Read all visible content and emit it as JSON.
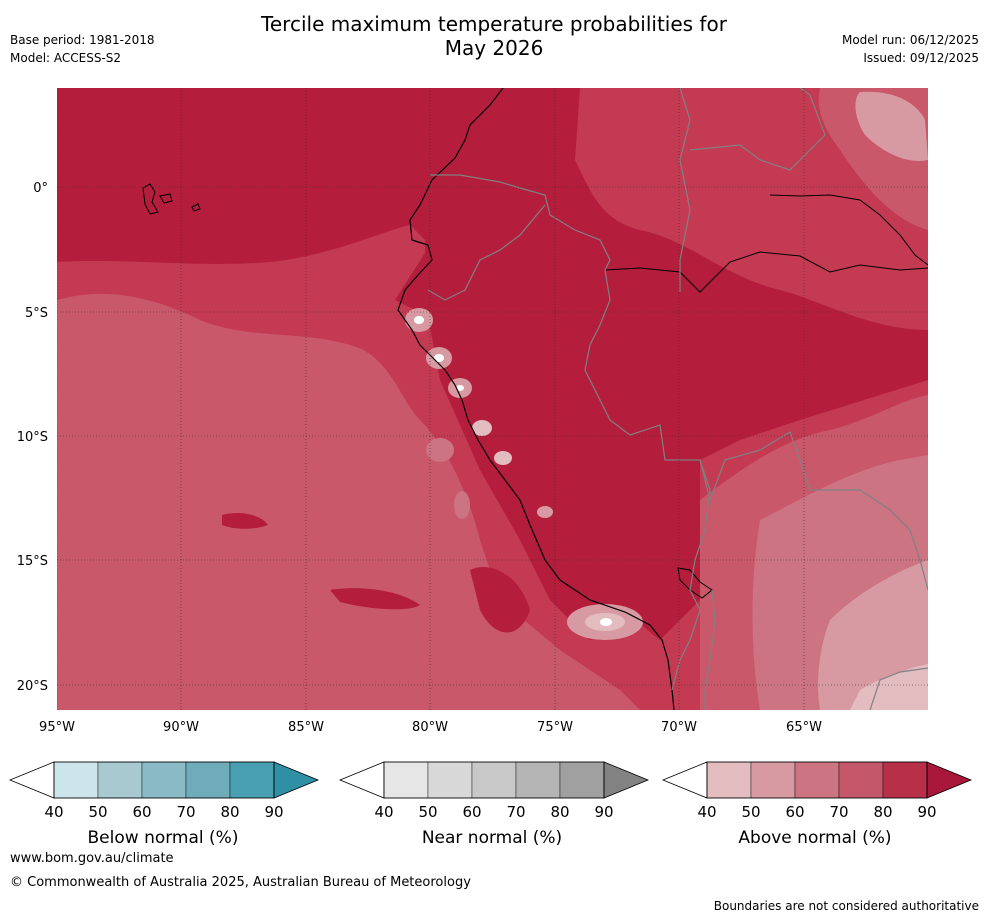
{
  "title_line1": "Tercile maximum temperature probabilities for",
  "title_line2": "May 2026",
  "meta_left": {
    "base_period": "Base period: 1981-2018",
    "model": "Model: ACCESS-S2"
  },
  "meta_right": {
    "model_run": "Model run: 06/12/2025",
    "issued": "Issued: 09/12/2025"
  },
  "map": {
    "lon_ticks": [
      "95°W",
      "90°W",
      "85°W",
      "80°W",
      "75°W",
      "70°W",
      "65°W"
    ],
    "lat_ticks": [
      "0°",
      "5°S",
      "10°S",
      "15°S",
      "20°S"
    ],
    "colors": {
      "ocean_base": "#b41e3c",
      "p90": "#b41e3c",
      "p80": "#c43a52",
      "p70": "#c8586a",
      "p60": "#cc7482",
      "p50": "#d89aa2",
      "p40": "#e3bcc0",
      "coast": "#000000",
      "border": "#808080",
      "grid": "#333333"
    }
  },
  "colorbars": [
    {
      "label": "Below normal (%)",
      "ticks": [
        "40",
        "50",
        "60",
        "70",
        "80",
        "90"
      ],
      "colors": [
        "#cce5ea",
        "#a8c9d0",
        "#8abac6",
        "#6fabb8",
        "#479fb1",
        "#2e8fa5"
      ]
    },
    {
      "label": "Near normal (%)",
      "ticks": [
        "40",
        "50",
        "60",
        "70",
        "80",
        "90"
      ],
      "colors": [
        "#e6e6e6",
        "#d8d8d8",
        "#c8c8c8",
        "#b4b4b4",
        "#a0a0a0",
        "#828282"
      ]
    },
    {
      "label": "Above normal (%)",
      "ticks": [
        "40",
        "50",
        "60",
        "70",
        "80",
        "90"
      ],
      "colors": [
        "#e3bcc0",
        "#d89aa2",
        "#cc7482",
        "#c4586a",
        "#b72f48",
        "#a8173a"
      ]
    }
  ],
  "footer": {
    "url": "www.bom.gov.au/climate",
    "copyright": "© Commonwealth of Australia 2025, Australian Bureau of Meteorology",
    "disclaimer": "Boundaries are not considered authoritative"
  }
}
